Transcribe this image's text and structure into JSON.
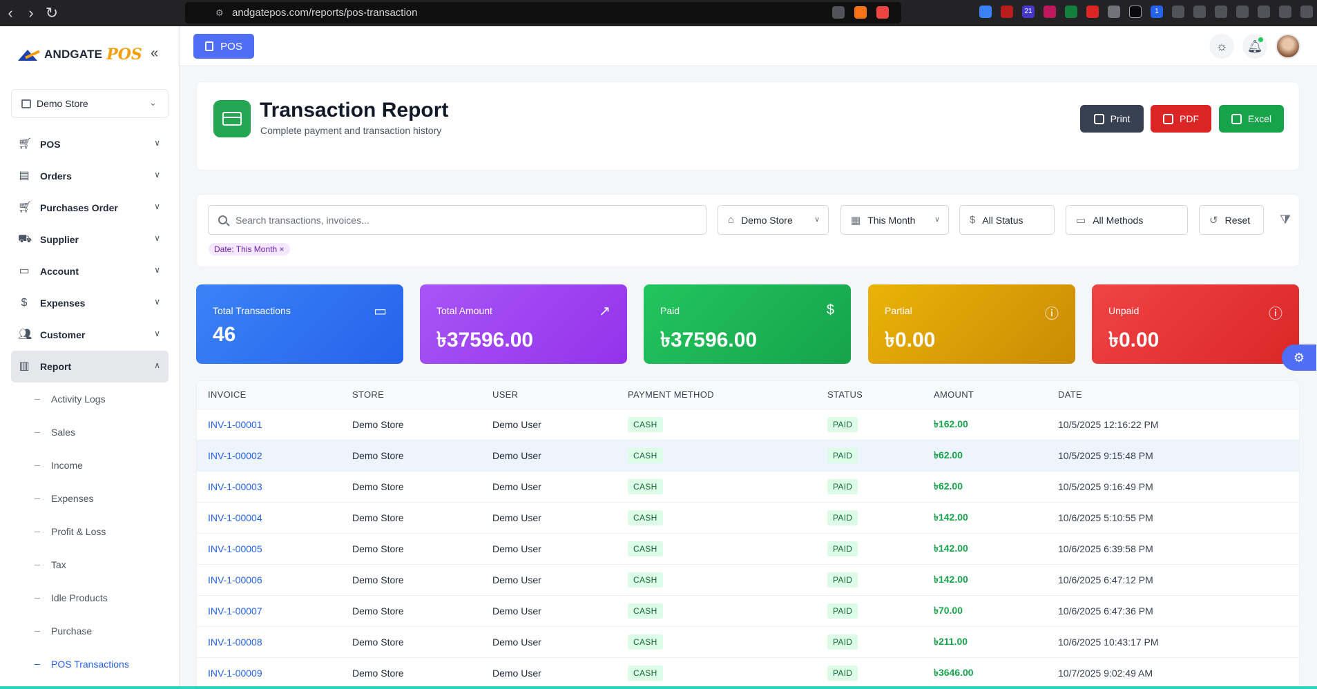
{
  "browser": {
    "url": "andgatepos.com/reports/pos-transaction",
    "ext_badges": [
      "21",
      "1"
    ]
  },
  "brand": {
    "name": "ANDGATE",
    "suffix": "POS"
  },
  "sidebar": {
    "store": "Demo Store",
    "items": [
      {
        "label": "POS",
        "icon": "cart-icon"
      },
      {
        "label": "Orders",
        "icon": "document-icon"
      },
      {
        "label": "Purchases Order",
        "icon": "cart-icon"
      },
      {
        "label": "Supplier",
        "icon": "truck-icon"
      },
      {
        "label": "Account",
        "icon": "wallet-icon"
      },
      {
        "label": "Expenses",
        "icon": "receipt-icon"
      },
      {
        "label": "Customer",
        "icon": "users-icon"
      },
      {
        "label": "Report",
        "icon": "bar-chart-icon"
      }
    ],
    "report_sub": [
      "Activity Logs",
      "Sales",
      "Income",
      "Expenses",
      "Profit & Loss",
      "Tax",
      "Idle Products",
      "Purchase",
      "POS Transactions"
    ]
  },
  "topbar": {
    "pos_label": "POS"
  },
  "header": {
    "title": "Transaction Report",
    "subtitle": "Complete payment and transaction history",
    "print": "Print",
    "pdf": "PDF",
    "excel": "Excel"
  },
  "filters": {
    "search_placeholder": "Search transactions, invoices...",
    "store": "Demo Store",
    "period": "This Month",
    "status": "All Status",
    "method": "All Methods",
    "reset": "Reset",
    "chip": "Date: This Month ×"
  },
  "stats": [
    {
      "label": "Total Transactions",
      "value": "46"
    },
    {
      "label": "Total Amount",
      "value": "৳37596.00"
    },
    {
      "label": "Paid",
      "value": "৳37596.00"
    },
    {
      "label": "Partial",
      "value": "৳0.00"
    },
    {
      "label": "Unpaid",
      "value": "৳0.00"
    }
  ],
  "table": {
    "columns": [
      "INVOICE",
      "STORE",
      "USER",
      "PAYMENT METHOD",
      "STATUS",
      "AMOUNT",
      "DATE"
    ],
    "rows": [
      [
        "INV-1-00001",
        "Demo Store",
        "Demo User",
        "CASH",
        "PAID",
        "৳162.00",
        "10/5/2025 12:16:22 PM"
      ],
      [
        "INV-1-00002",
        "Demo Store",
        "Demo User",
        "CASH",
        "PAID",
        "৳62.00",
        "10/5/2025 9:15:48 PM"
      ],
      [
        "INV-1-00003",
        "Demo Store",
        "Demo User",
        "CASH",
        "PAID",
        "৳62.00",
        "10/5/2025 9:16:49 PM"
      ],
      [
        "INV-1-00004",
        "Demo Store",
        "Demo User",
        "CASH",
        "PAID",
        "৳142.00",
        "10/6/2025 5:10:55 PM"
      ],
      [
        "INV-1-00005",
        "Demo Store",
        "Demo User",
        "CASH",
        "PAID",
        "৳142.00",
        "10/6/2025 6:39:58 PM"
      ],
      [
        "INV-1-00006",
        "Demo Store",
        "Demo User",
        "CASH",
        "PAID",
        "৳142.00",
        "10/6/2025 6:47:12 PM"
      ],
      [
        "INV-1-00007",
        "Demo Store",
        "Demo User",
        "CASH",
        "PAID",
        "৳70.00",
        "10/6/2025 6:47:36 PM"
      ],
      [
        "INV-1-00008",
        "Demo Store",
        "Demo User",
        "CASH",
        "PAID",
        "৳211.00",
        "10/6/2025 10:43:17 PM"
      ],
      [
        "INV-1-00009",
        "Demo Store",
        "Demo User",
        "CASH",
        "PAID",
        "৳3646.00",
        "10/7/2025 9:02:49 AM"
      ]
    ]
  },
  "colors": {
    "primary": "#4f6df5",
    "link": "#2563eb",
    "paid": "#16a34a",
    "danger": "#dc2626"
  }
}
